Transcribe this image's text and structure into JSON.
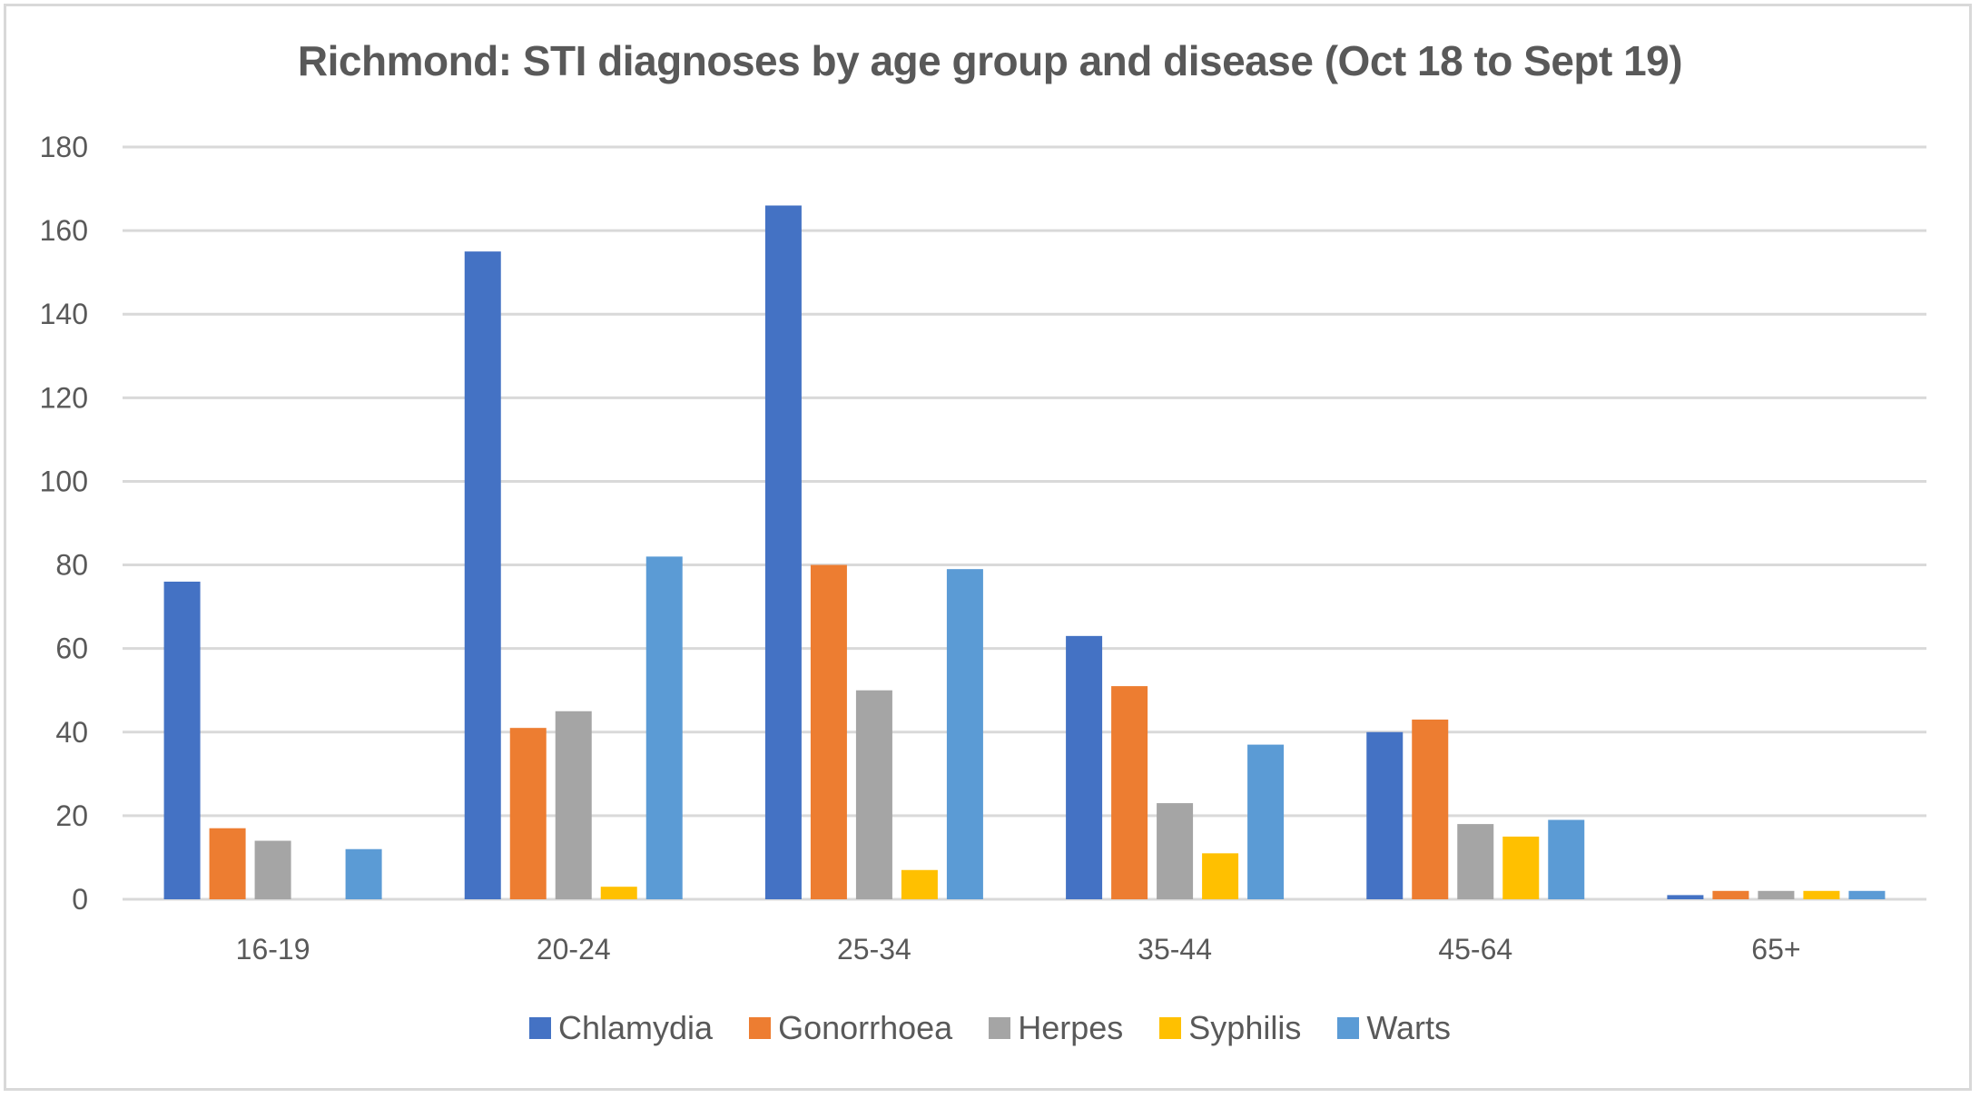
{
  "chart_data": {
    "type": "bar",
    "title": "Richmond: STI diagnoses by age group and disease (Oct 18 to Sept 19)",
    "xlabel": "",
    "ylabel": "",
    "ylim": [
      0,
      180
    ],
    "yticks": [
      0,
      20,
      40,
      60,
      80,
      100,
      120,
      140,
      160,
      180
    ],
    "grid": true,
    "legend_position": "bottom",
    "categories": [
      "16-19",
      "20-24",
      "25-34",
      "35-44",
      "45-64",
      "65+"
    ],
    "series": [
      {
        "name": "Chlamydia",
        "color": "#4472c4",
        "values": [
          76,
          155,
          166,
          63,
          40,
          1
        ]
      },
      {
        "name": "Gonorrhoea",
        "color": "#ed7d31",
        "values": [
          17,
          41,
          80,
          51,
          43,
          2
        ]
      },
      {
        "name": "Herpes",
        "color": "#a5a5a5",
        "values": [
          14,
          45,
          50,
          23,
          18,
          2
        ]
      },
      {
        "name": "Syphilis",
        "color": "#ffc000",
        "values": [
          0,
          3,
          7,
          11,
          15,
          2
        ]
      },
      {
        "name": "Warts",
        "color": "#5b9bd5",
        "values": [
          12,
          82,
          79,
          37,
          19,
          2
        ]
      }
    ]
  }
}
